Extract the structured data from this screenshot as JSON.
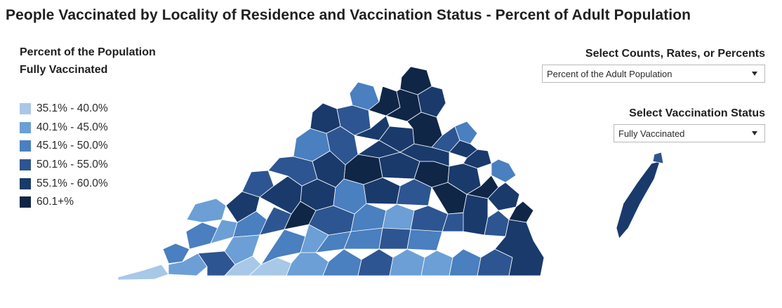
{
  "title": "People Vaccinated by Locality of Residence and Vaccination Status - Percent of Adult Population",
  "legend": {
    "title_line1": "Percent of the Population",
    "title_line2": "Fully Vaccinated",
    "items": [
      {
        "label": "35.1% - 40.0%",
        "color": "#a8c8e8"
      },
      {
        "label": "40.1% - 45.0%",
        "color": "#6b9fd6"
      },
      {
        "label": "45.1% - 50.0%",
        "color": "#4a7fc0"
      },
      {
        "label": "50.1% - 55.0%",
        "color": "#2d5591"
      },
      {
        "label": "55.1% - 60.0%",
        "color": "#1a3a6c"
      },
      {
        "label": "60.1+%",
        "color": "#0f2647"
      }
    ]
  },
  "controls": {
    "measure": {
      "label": "Select Counts, Rates, or Percents",
      "value": "Percent of the Adult Population"
    },
    "status": {
      "label": "Select Vaccination Status",
      "value": "Fully Vaccinated"
    }
  },
  "map": {
    "region": "Virginia localities",
    "regions": [
      {
        "name": "far-southwest",
        "bin": 0
      },
      {
        "name": "southwest-1",
        "bin": 2
      },
      {
        "name": "southwest-2",
        "bin": 1
      },
      {
        "name": "southwest-3",
        "bin": 2
      },
      {
        "name": "southwest-4",
        "bin": 3
      },
      {
        "name": "southwest-5",
        "bin": 1
      },
      {
        "name": "southwest-6",
        "bin": 0
      },
      {
        "name": "southwest-7",
        "bin": 0
      },
      {
        "name": "southwest-8",
        "bin": 1
      },
      {
        "name": "new-river-1",
        "bin": 2
      },
      {
        "name": "new-river-2",
        "bin": 1
      },
      {
        "name": "new-river-3",
        "bin": 3
      },
      {
        "name": "new-river-4",
        "bin": 4
      },
      {
        "name": "roanoke-1",
        "bin": 5
      },
      {
        "name": "roanoke-2",
        "bin": 2
      },
      {
        "name": "southside-1",
        "bin": 1
      },
      {
        "name": "southside-2",
        "bin": 2
      },
      {
        "name": "southside-3",
        "bin": 1
      },
      {
        "name": "southside-4",
        "bin": 2
      },
      {
        "name": "southside-5",
        "bin": 3
      },
      {
        "name": "southside-6",
        "bin": 2
      },
      {
        "name": "southside-7",
        "bin": 1
      },
      {
        "name": "southside-8",
        "bin": 3
      },
      {
        "name": "southside-9",
        "bin": 1
      },
      {
        "name": "southside-10",
        "bin": 2
      },
      {
        "name": "central-1",
        "bin": 3
      },
      {
        "name": "central-2",
        "bin": 2
      },
      {
        "name": "central-3",
        "bin": 1
      },
      {
        "name": "central-4",
        "bin": 3
      },
      {
        "name": "central-5",
        "bin": 4
      },
      {
        "name": "central-6",
        "bin": 2
      },
      {
        "name": "piedmont-1",
        "bin": 4
      },
      {
        "name": "piedmont-2",
        "bin": 3
      },
      {
        "name": "piedmont-3",
        "bin": 5
      },
      {
        "name": "piedmont-4",
        "bin": 4
      },
      {
        "name": "valley-1",
        "bin": 3
      },
      {
        "name": "valley-2",
        "bin": 4
      },
      {
        "name": "valley-3",
        "bin": 3
      },
      {
        "name": "valley-4",
        "bin": 4
      },
      {
        "name": "valley-5",
        "bin": 2
      },
      {
        "name": "valley-6",
        "bin": 3
      },
      {
        "name": "valley-7",
        "bin": 4
      },
      {
        "name": "northern-1",
        "bin": 3
      },
      {
        "name": "northern-2",
        "bin": 2
      },
      {
        "name": "northern-3",
        "bin": 5
      },
      {
        "name": "northern-4",
        "bin": 5
      },
      {
        "name": "northern-5",
        "bin": 4
      },
      {
        "name": "northern-6",
        "bin": 5
      },
      {
        "name": "northern-7",
        "bin": 4
      },
      {
        "name": "fredericksburg-1",
        "bin": 4
      },
      {
        "name": "fredericksburg-2",
        "bin": 5
      },
      {
        "name": "fredericksburg-3",
        "bin": 4
      },
      {
        "name": "neck-1",
        "bin": 3
      },
      {
        "name": "neck-2",
        "bin": 2
      },
      {
        "name": "neck-3",
        "bin": 4
      },
      {
        "name": "richmond-1",
        "bin": 5
      },
      {
        "name": "richmond-2",
        "bin": 4
      },
      {
        "name": "richmond-3",
        "bin": 5
      },
      {
        "name": "richmond-4",
        "bin": 3
      },
      {
        "name": "richmond-5",
        "bin": 4
      },
      {
        "name": "peninsula-1",
        "bin": 4
      },
      {
        "name": "peninsula-2",
        "bin": 5
      },
      {
        "name": "peninsula-3",
        "bin": 2
      },
      {
        "name": "hampton-roads-1",
        "bin": 4
      },
      {
        "name": "hampton-roads-2",
        "bin": 3
      },
      {
        "name": "hampton-roads-3",
        "bin": 4
      },
      {
        "name": "hampton-roads-4",
        "bin": 5
      },
      {
        "name": "southeast-1",
        "bin": 2
      },
      {
        "name": "southeast-2",
        "bin": 3
      },
      {
        "name": "southeast-3",
        "bin": 4
      },
      {
        "name": "eastern-shore-1",
        "bin": 4
      },
      {
        "name": "eastern-shore-2",
        "bin": 3
      }
    ]
  }
}
